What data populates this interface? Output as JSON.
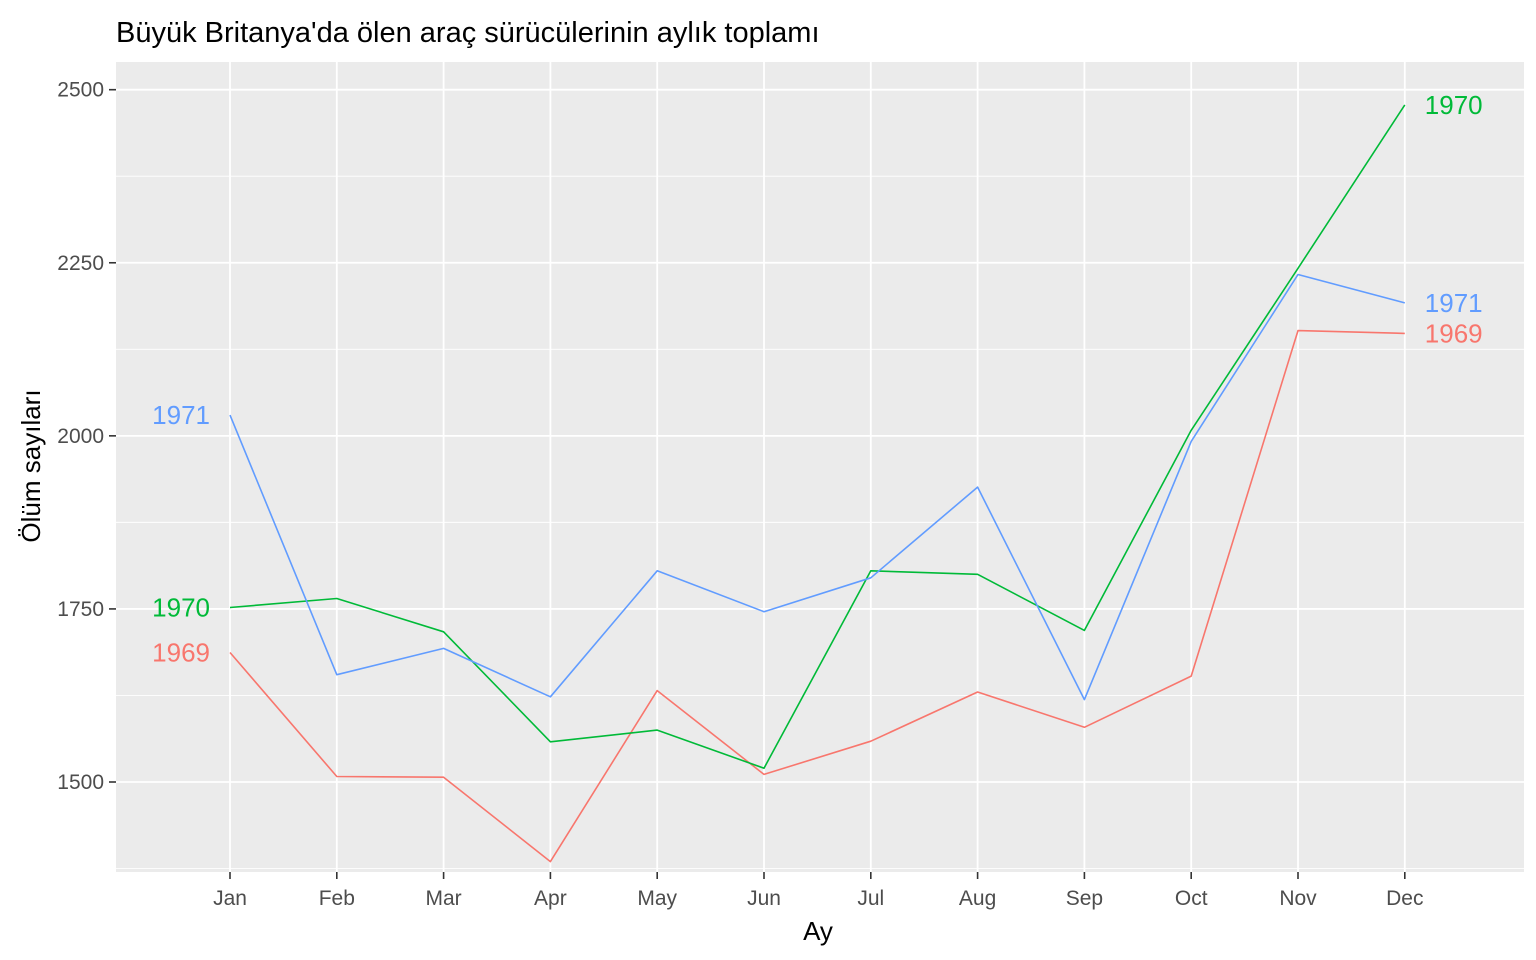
{
  "chart_data": {
    "type": "line",
    "title": "Büyük Britanya'da ölen araç sürücülerinin aylık toplamı",
    "xlabel": "Ay",
    "ylabel": "Ölüm sayıları",
    "categories": [
      "Jan",
      "Feb",
      "Mar",
      "Apr",
      "May",
      "Jun",
      "Jul",
      "Aug",
      "Sep",
      "Oct",
      "Nov",
      "Dec"
    ],
    "ylim": [
      1370,
      2540
    ],
    "yticks": [
      1500,
      1750,
      2000,
      2250,
      2500
    ],
    "grid": true,
    "legend": "none (series labelled at line ends)",
    "series": [
      {
        "name": "1969",
        "color": "#F8766D",
        "values": [
          1687,
          1508,
          1507,
          1385,
          1632,
          1511,
          1559,
          1630,
          1579,
          1653,
          2152,
          2148
        ]
      },
      {
        "name": "1970",
        "color": "#00BA38",
        "values": [
          1752,
          1765,
          1717,
          1558,
          1575,
          1520,
          1805,
          1800,
          1719,
          2008,
          2242,
          2478
        ]
      },
      {
        "name": "1971",
        "color": "#619CFF",
        "values": [
          2030,
          1655,
          1693,
          1623,
          1805,
          1746,
          1795,
          1926,
          1619,
          1992,
          2233,
          2192
        ]
      }
    ]
  }
}
